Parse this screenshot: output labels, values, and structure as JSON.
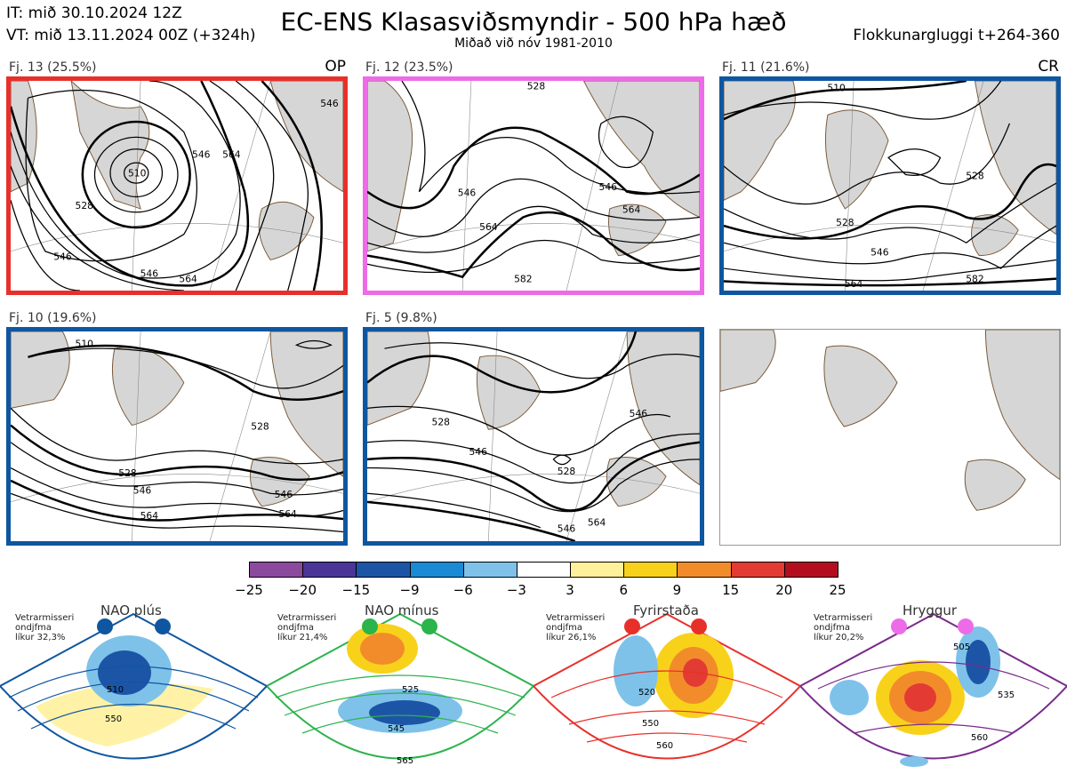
{
  "header": {
    "it": "IT: mið 30.10.2024 12Z",
    "vt": "VT: mið 13.11.2024 00Z  (+324h)",
    "title": "EC-ENS Klasasviðsmyndir - 500 hPa hæð",
    "subtitle": "Miðað við nóv 1981-2010",
    "window": "Flokkunargluggi t+264-360"
  },
  "panels": [
    {
      "label": "Fj. 13 (25.5%)",
      "tag": "OP",
      "border": "#e8302b",
      "contours": [
        "510",
        "528",
        "546",
        "564",
        "546",
        "564",
        "546",
        "546"
      ]
    },
    {
      "label": "Fj. 12 (23.5%)",
      "tag": "",
      "border": "#ee6be8",
      "contours": [
        "528",
        "546",
        "564",
        "564",
        "546",
        "582"
      ]
    },
    {
      "label": "Fj. 11 (21.6%)",
      "tag": "CR",
      "border": "#0f56a0",
      "contours": [
        "510",
        "528",
        "546",
        "528",
        "564",
        "582"
      ]
    },
    {
      "label": "Fj. 10 (19.6%)",
      "tag": "",
      "border": "#0f56a0",
      "contours": [
        "510",
        "528",
        "528",
        "546",
        "564",
        "546",
        "564"
      ]
    },
    {
      "label": "Fj. 5 (9.8%)",
      "tag": "",
      "border": "#0f56a0",
      "contours": [
        "528",
        "546",
        "528",
        "546",
        "564",
        "546"
      ]
    }
  ],
  "colorbar": {
    "ticks": [
      "−25",
      "−20",
      "−15",
      "−9",
      "−6",
      "−3",
      "3",
      "6",
      "9",
      "15",
      "20",
      "25"
    ],
    "colors": [
      "#8c4a9e",
      "#4b3596",
      "#1d55a6",
      "#1a8ad4",
      "#7ec2ea",
      "#ffffff",
      "#fff19c",
      "#f8d21a",
      "#f28c2b",
      "#e33b33",
      "#b40e1e"
    ]
  },
  "regimes": [
    {
      "name": "NAO plús",
      "prob": [
        "Vetrarmisseri",
        "ondjfma",
        "líkur 32,3%"
      ],
      "dot_color": "#0f56a0",
      "border": "#0f56a0",
      "contours": [
        "510",
        "550"
      ]
    },
    {
      "name": "NAO mínus",
      "prob": [
        "Vetrarmisseri",
        "ondjfma",
        "líkur 21,4%"
      ],
      "dot_color": "#2bb34c",
      "border": "#2bb34c",
      "contours": [
        "525",
        "545",
        "565"
      ]
    },
    {
      "name": "Fyrirstaða",
      "prob": [
        "Vetrarmisseri",
        "ondjfma",
        "líkur 26,1%"
      ],
      "dot_color": "#e8302b",
      "border": "#e8302b",
      "contours": [
        "520",
        "550",
        "560"
      ]
    },
    {
      "name": "Hryggur",
      "prob": [
        "Vetrarmisseri",
        "ondjfma",
        "líkur 20,2%"
      ],
      "dot_color": "#ee6be8",
      "border": "#7a2a8c",
      "contours": [
        "505",
        "535",
        "560"
      ]
    }
  ]
}
